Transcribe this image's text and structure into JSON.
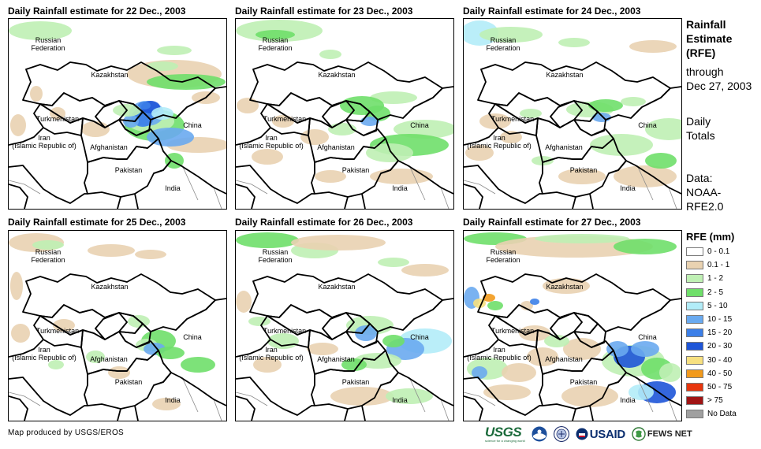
{
  "panels": [
    {
      "title": "Daily Rainfall estimate for 22 Dec., 2003"
    },
    {
      "title": "Daily Rainfall estimate for 23 Dec., 2003"
    },
    {
      "title": "Daily Rainfall estimate for 24 Dec., 2003"
    },
    {
      "title": "Daily Rainfall estimate for 25 Dec., 2003"
    },
    {
      "title": "Daily Rainfall estimate for 26 Dec., 2003"
    },
    {
      "title": "Daily Rainfall estimate for 27 Dec., 2003"
    }
  ],
  "countries": {
    "russia": "Russian\nFederation",
    "kazakhstan": "Kazakhstan",
    "turkmenistan": "Turkmenistan",
    "china": "China",
    "iran": "Iran\n(Islamic Republic of)",
    "afghanistan": "Afghanistan",
    "pakistan": "Pakistan",
    "india": "India"
  },
  "side_info": {
    "heading": "Rainfall\nEstimate\n(RFE)",
    "through": "through\nDec 27, 2003",
    "totals": "Daily\nTotals",
    "source": "Data:\nNOAA-\nRFE2.0"
  },
  "legend": {
    "title": "RFE (mm)",
    "items": [
      {
        "label": "0 - 0.1",
        "color": "#ffffff"
      },
      {
        "label": "0.1 - 1",
        "color": "#e9d2b1"
      },
      {
        "label": "1 - 2",
        "color": "#bff0b4"
      },
      {
        "label": "2 - 5",
        "color": "#6fdf6a"
      },
      {
        "label": "5 - 10",
        "color": "#b2ecf8"
      },
      {
        "label": "10 - 15",
        "color": "#6aaaf0"
      },
      {
        "label": "15 - 20",
        "color": "#3c7fe8"
      },
      {
        "label": "20 - 30",
        "color": "#1e55d8"
      },
      {
        "label": "30 - 40",
        "color": "#f7e080"
      },
      {
        "label": "40 - 50",
        "color": "#f29a1c"
      },
      {
        "label": "50 - 75",
        "color": "#e8360e"
      },
      {
        "label": "> 75",
        "color": "#a01414"
      },
      {
        "label": "No Data",
        "color": "#a0a0a0"
      }
    ]
  },
  "footer": "Map produced by USGS/EROS",
  "logos": {
    "usgs": "USGS",
    "usgs_tagline": "science for a changing world",
    "usaid": "USAID",
    "fews": "FEWS NET"
  }
}
